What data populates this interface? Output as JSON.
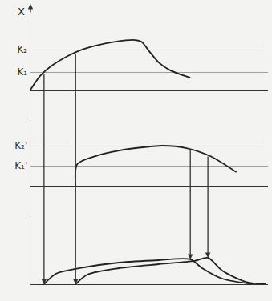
{
  "chart_data": [
    {
      "type": "line",
      "y_label": "X",
      "xlim": [
        0,
        100
      ],
      "ylim": [
        0,
        10.7
      ],
      "yticks": [
        {
          "value": 2.2,
          "label": "K₁"
        },
        {
          "value": 5.0,
          "label": "K₂"
        }
      ],
      "grid": true,
      "tick_labels": "y",
      "color": "#222222",
      "series": [
        {
          "x": [
            0,
            4,
            9,
            15.7,
            20.7,
            27.3,
            35.7,
            44,
            46.7,
            50,
            54,
            59,
            67.3
          ],
          "values": [
            0,
            1.7,
            3.0,
            4.2,
            4.9,
            5.5,
            6.0,
            6.2,
            6.0,
            4.8,
            3.4,
            2.4,
            1.5
          ]
        }
      ]
    },
    {
      "type": "line",
      "xlim": [
        0,
        100
      ],
      "ylim": [
        0,
        8.2
      ],
      "yticks": [
        {
          "value": 2.5,
          "label": "K₁'"
        },
        {
          "value": 5.0,
          "label": "K₂'"
        }
      ],
      "grid": true,
      "tick_labels": "y",
      "color": "#222222",
      "series": [
        {
          "x": [
            19,
            19.7,
            27.3,
            37.3,
            47.3,
            55.7,
            65.7,
            75.7,
            86.7
          ],
          "values": [
            0,
            2.7,
            3.7,
            4.4,
            4.8,
            5.0,
            4.7,
            3.7,
            1.7
          ]
        }
      ]
    },
    {
      "type": "line",
      "xlim": [
        0,
        100
      ],
      "ylim": [
        0,
        8.5
      ],
      "yticks": [],
      "grid": false,
      "tick_labels": false,
      "color": "#222222",
      "series": [
        {
          "x": [
            5.7,
            10.7,
            20.7,
            37.3,
            54,
            67.3,
            72.3,
            80.7,
            94
          ],
          "values": [
            0,
            1.3,
            2.0,
            2.7,
            3.0,
            3.1,
            2.0,
            0.7,
            0
          ]
        },
        {
          "x": [
            19,
            24,
            37.3,
            54,
            69,
            74.7,
            80.7,
            90.7,
            99
          ],
          "values": [
            0,
            1.2,
            2.0,
            2.5,
            2.9,
            3.3,
            1.7,
            0.3,
            0
          ]
        }
      ]
    }
  ]
}
